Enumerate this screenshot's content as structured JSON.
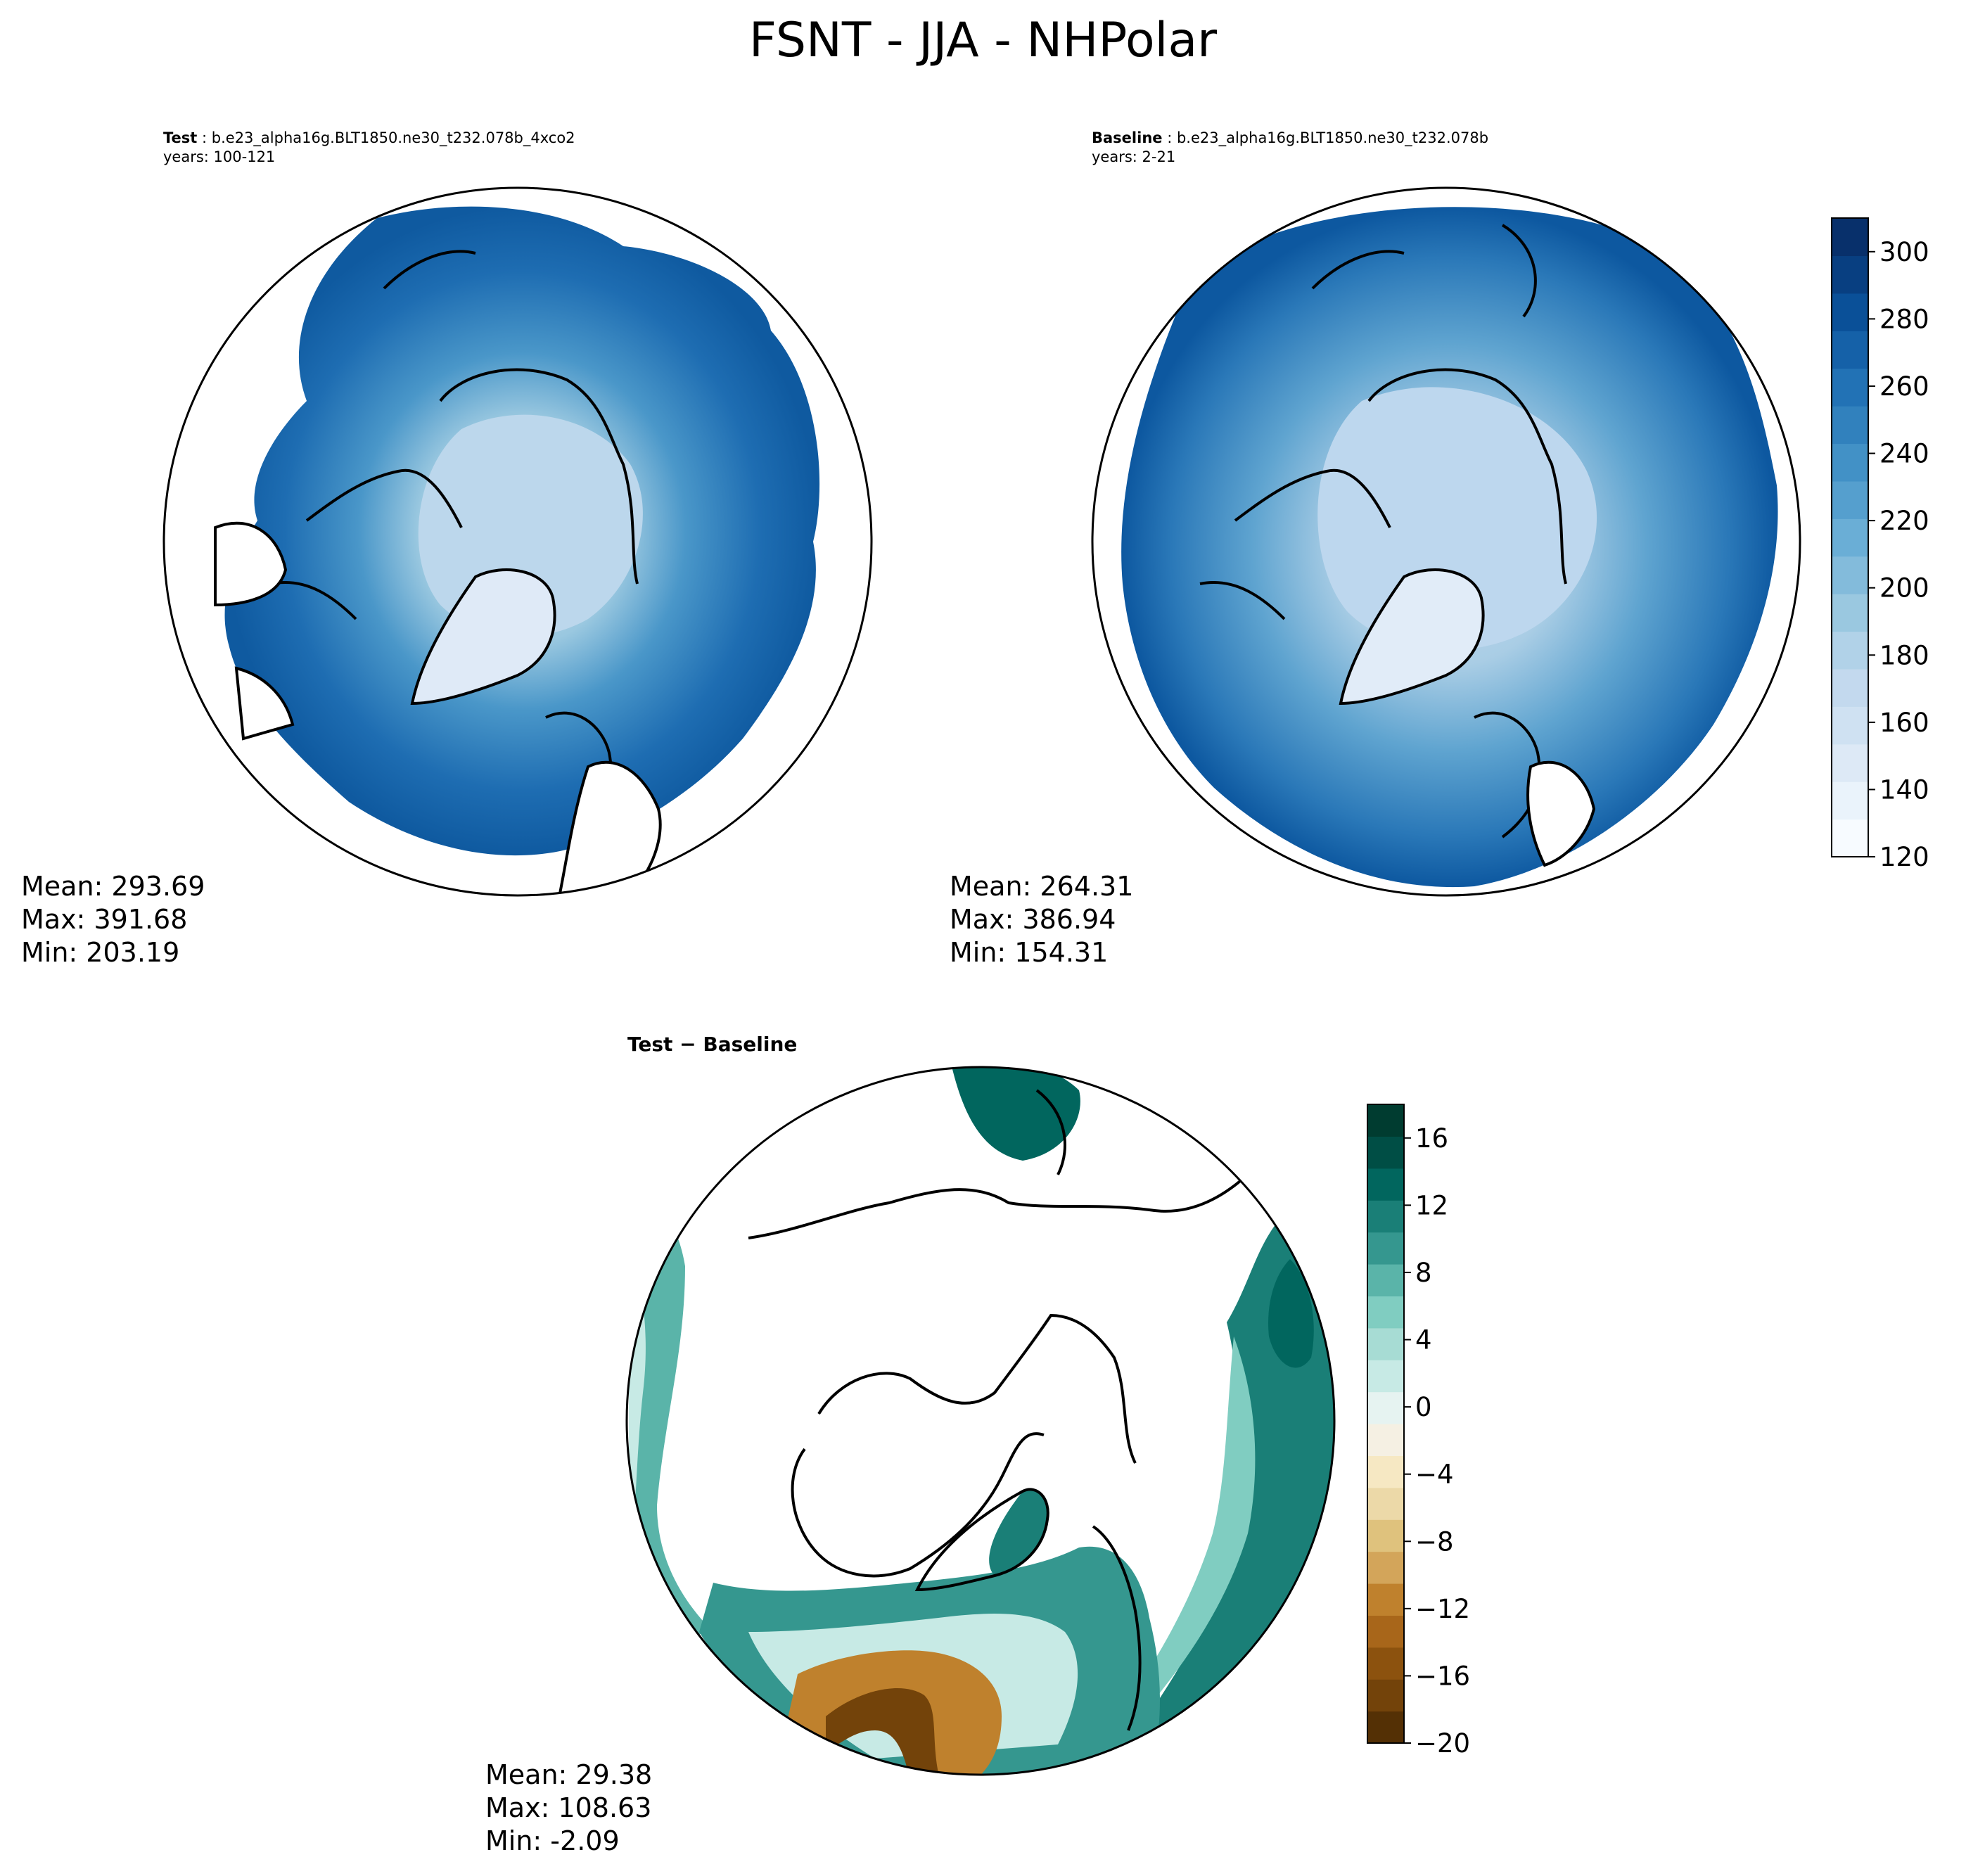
{
  "figure": {
    "title": "FSNT - JJA - NHPolar"
  },
  "panels": {
    "test": {
      "label": "Test",
      "case": "b.e23_alpha16g.BLT1850.ne30_t232.078b_4xco2",
      "years": "years: 100-121",
      "stats": {
        "mean": "Mean: 293.69",
        "max": "Max: 391.68",
        "min": "Min: 203.19"
      }
    },
    "baseline": {
      "label": "Baseline",
      "case": "b.e23_alpha16g.BLT1850.ne30_t232.078b",
      "years": "years: 2-21",
      "stats": {
        "mean": "Mean: 264.31",
        "max": "Max: 386.94",
        "min": "Min: 154.31"
      }
    },
    "diff": {
      "title": "Test − Baseline",
      "stats": {
        "mean": "Mean: 29.38",
        "max": "Max: 108.63",
        "min": "Min: -2.09"
      }
    }
  },
  "colorbars": {
    "main": {
      "min": 120,
      "max": 310,
      "ticks": [
        "120",
        "140",
        "160",
        "180",
        "200",
        "220",
        "240",
        "260",
        "280",
        "300"
      ],
      "colors": [
        "#f7fbff",
        "#eaf3fb",
        "#dde9f6",
        "#cfe1f2",
        "#c3d9ee",
        "#b1d2e8",
        "#9ac8e0",
        "#83bbdb",
        "#6aaed6",
        "#559fce",
        "#4291c6",
        "#3181bd",
        "#2272b5",
        "#1561a8",
        "#0a5098",
        "#083f81",
        "#08306b"
      ]
    },
    "diff": {
      "min": -20,
      "max": 18,
      "ticks": [
        "−20",
        "−16",
        "−12",
        "−8",
        "−4",
        "0",
        "4",
        "8",
        "12",
        "16"
      ],
      "colors": [
        "#543005",
        "#73430a",
        "#8c520e",
        "#a8661a",
        "#bf812d",
        "#d3a55a",
        "#dfc27d",
        "#ecd9a8",
        "#f6e8c3",
        "#f5f0e3",
        "#e6f3f1",
        "#c7eae5",
        "#a7dcd4",
        "#80cdc1",
        "#5ab4a9",
        "#35978f",
        "#1a7f77",
        "#01665e",
        "#004e45",
        "#003c30"
      ]
    }
  }
}
